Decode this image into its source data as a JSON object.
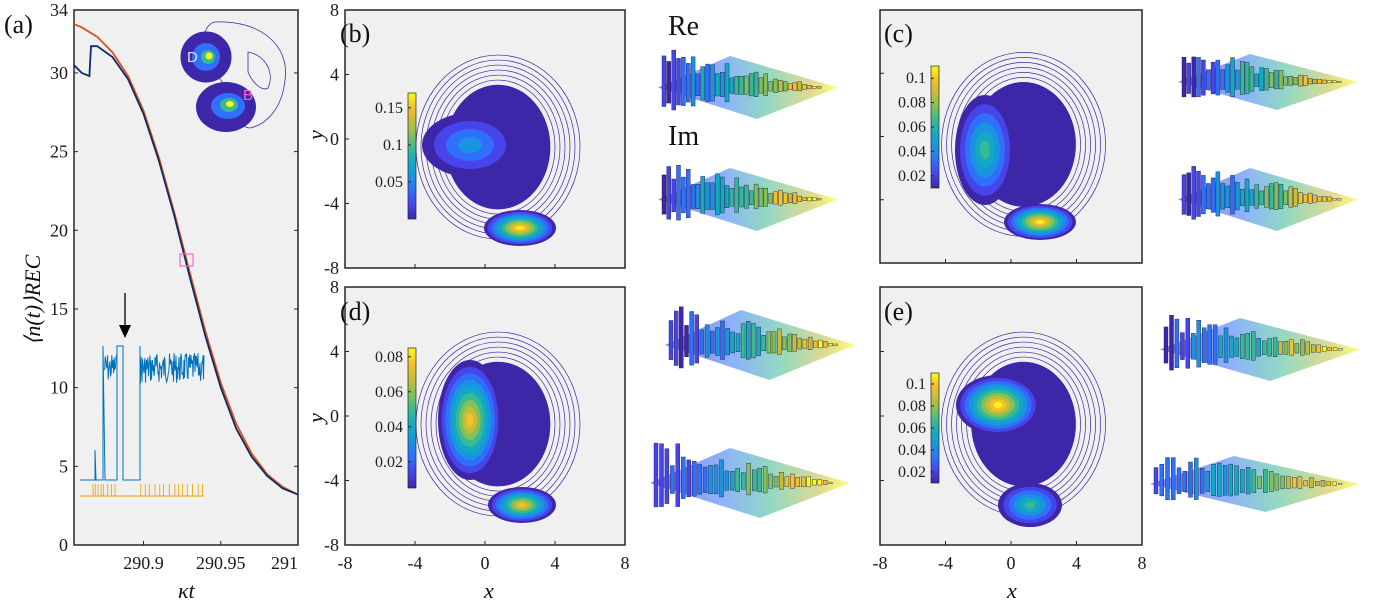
{
  "chart_data": [
    {
      "panel": "(a)",
      "type": "line",
      "xlabel": "κt",
      "ylabel": "⟨n(t)⟩REC",
      "xlim": [
        290.855,
        291
      ],
      "ylim": [
        0,
        34
      ],
      "xticks": [
        "290.9",
        "290.95",
        "291"
      ],
      "xtick_values": [
        290.9,
        290.95,
        291
      ],
      "yticks": [
        "0",
        "5",
        "10",
        "15",
        "20",
        "25",
        "30",
        "34"
      ],
      "ytick_values": [
        0,
        5,
        10,
        15,
        20,
        25,
        30,
        34
      ],
      "series": [
        {
          "color": "#d95319",
          "x": [
            290.855,
            290.86,
            290.87,
            290.88,
            290.89,
            290.9,
            290.91,
            290.92,
            290.93,
            290.94,
            290.95,
            290.96,
            290.97,
            290.98,
            290.99,
            291.0
          ],
          "y": [
            33.1,
            32.9,
            32.3,
            31.3,
            29.8,
            27.6,
            24.6,
            21.1,
            17.3,
            13.6,
            10.3,
            7.7,
            5.8,
            4.5,
            3.7,
            3.2
          ]
        },
        {
          "color": "#0d2b6b",
          "x": [
            290.855,
            290.86,
            290.865,
            290.866,
            290.87,
            290.88,
            290.89,
            290.9,
            290.91,
            290.92,
            290.93,
            290.94,
            290.95,
            290.96,
            290.97,
            290.98,
            290.99,
            291.0
          ],
          "y": [
            30.5,
            30.0,
            29.8,
            31.7,
            31.7,
            31.0,
            29.6,
            27.4,
            24.4,
            20.9,
            17.0,
            13.3,
            10.0,
            7.4,
            5.6,
            4.4,
            3.6,
            3.2
          ]
        }
      ],
      "inset_labels": [
        "D",
        "B"
      ]
    },
    {
      "panel": "(b)",
      "type": "heatmap",
      "xlabel": "",
      "ylabel": "y",
      "xlim": [
        -8,
        8
      ],
      "ylim": [
        -8,
        8
      ],
      "yticks": [
        "-8",
        "-4",
        "0",
        "4",
        "8"
      ],
      "colorbar_ticks": [
        "0.05",
        "0.1",
        "0.15"
      ],
      "colorbar_tick_values": [
        0.05,
        0.1,
        0.15
      ],
      "colorbar_range": [
        0,
        0.17
      ]
    },
    {
      "panel": "(c)",
      "type": "heatmap",
      "xlabel": "",
      "ylabel": "",
      "xlim": [
        -8,
        8
      ],
      "ylim": [
        -8,
        8
      ],
      "colorbar_ticks": [
        "0.02",
        "0.04",
        "0.06",
        "0.08",
        "0.1"
      ],
      "colorbar_tick_values": [
        0.02,
        0.04,
        0.06,
        0.08,
        0.1
      ],
      "colorbar_range": [
        0.01,
        0.11
      ]
    },
    {
      "panel": "(d)",
      "type": "heatmap",
      "xlabel": "x",
      "ylabel": "y",
      "xlim": [
        -8,
        8
      ],
      "ylim": [
        -8,
        8
      ],
      "xticks": [
        "-8",
        "-4",
        "0",
        "4",
        "8"
      ],
      "yticks": [
        "-8",
        "-4",
        "0",
        "4",
        "8"
      ],
      "colorbar_ticks": [
        "0.02",
        "0.04",
        "0.06",
        "0.08"
      ],
      "colorbar_tick_values": [
        0.02,
        0.04,
        0.06,
        0.08
      ],
      "colorbar_range": [
        0.005,
        0.085
      ]
    },
    {
      "panel": "(e)",
      "type": "heatmap",
      "xlabel": "x",
      "ylabel": "",
      "xlim": [
        -8,
        8
      ],
      "ylim": [
        -8,
        8
      ],
      "xticks": [
        "-8",
        "-4",
        "0",
        "4",
        "8"
      ],
      "colorbar_ticks": [
        "0.02",
        "0.04",
        "0.06",
        "0.08",
        "0.1"
      ],
      "colorbar_tick_values": [
        0.02,
        0.04,
        0.06,
        0.08,
        0.1
      ],
      "colorbar_range": [
        0.01,
        0.11
      ]
    }
  ],
  "labels": {
    "a": "(a)",
    "b": "(b)",
    "c": "(c)",
    "d": "(d)",
    "e": "(e)",
    "re": "Re",
    "im": "Im"
  },
  "colors": {
    "panel_bg": "#f0f0f0",
    "parula": [
      "#3e26a8",
      "#4744e9",
      "#2f6ffb",
      "#1a93e0",
      "#12aac3",
      "#38b993",
      "#82c15a",
      "#c5bd35",
      "#f6c02c",
      "#f9fb15"
    ],
    "jump_trace": "#0072bd",
    "click_marks": "#edb120",
    "marker_box": "#ff66cc"
  }
}
